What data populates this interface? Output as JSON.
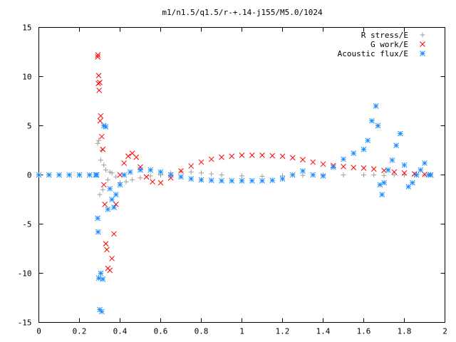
{
  "chart_data": {
    "type": "scatter",
    "title": "m1/n1.5/q1.5/r-+.14-j155/M5.0/1024",
    "xlabel": "",
    "ylabel": "",
    "xlim": [
      0,
      2
    ],
    "ylim": [
      -15,
      15
    ],
    "xticks": [
      0,
      0.2,
      0.4,
      0.6,
      0.8,
      1,
      1.2,
      1.4,
      1.6,
      1.8,
      2
    ],
    "xtick_labels": [
      "0",
      "0.2",
      "0.4",
      "0.6",
      "0.8",
      "1",
      "1.2",
      "1.4",
      "1.6",
      "1.8",
      "2"
    ],
    "yticks": [
      -15,
      -10,
      -5,
      0,
      5,
      10,
      15
    ],
    "ytick_labels": [
      "-15",
      "-10",
      "-5",
      "0",
      "5",
      "10",
      "15"
    ],
    "grid": false,
    "legend_position": "top-right",
    "series": [
      {
        "name": "R stress/E",
        "marker": "plus",
        "color": "#a0a0a0",
        "x": [
          0.29,
          0.295,
          0.3,
          0.305,
          0.31,
          0.315,
          0.32,
          0.33,
          0.34,
          0.35,
          0.36,
          0.38,
          0.4,
          0.43,
          0.46,
          0.5,
          0.55,
          0.6,
          0.65,
          0.7,
          0.75,
          0.8,
          0.85,
          0.9,
          1.0,
          1.1,
          1.2,
          1.3,
          1.4,
          1.5,
          1.6,
          1.65,
          1.7,
          1.75,
          1.8,
          1.85,
          1.9,
          1.93
        ],
        "y": [
          3.2,
          3.5,
          -2.0,
          1.5,
          2.5,
          -1.5,
          1.0,
          0.5,
          -0.5,
          0.3,
          0.2,
          -0.2,
          -0.8,
          -0.7,
          -0.5,
          -0.3,
          -0.1,
          0.0,
          0.2,
          0.35,
          0.3,
          0.2,
          0.1,
          0.0,
          -0.1,
          -0.15,
          -0.1,
          -0.05,
          0.0,
          0.0,
          0.0,
          0.0,
          -0.05,
          0.0,
          0.0,
          0.0,
          0.0,
          0.0
        ]
      },
      {
        "name": "G work/E",
        "marker": "cross",
        "color": "#ff0000",
        "x": [
          0.29,
          0.291,
          0.293,
          0.295,
          0.297,
          0.3,
          0.302,
          0.305,
          0.31,
          0.315,
          0.32,
          0.325,
          0.33,
          0.335,
          0.34,
          0.35,
          0.36,
          0.37,
          0.38,
          0.4,
          0.42,
          0.44,
          0.46,
          0.48,
          0.5,
          0.53,
          0.56,
          0.6,
          0.65,
          0.7,
          0.75,
          0.8,
          0.85,
          0.9,
          0.95,
          1.0,
          1.05,
          1.1,
          1.15,
          1.2,
          1.25,
          1.3,
          1.35,
          1.4,
          1.45,
          1.5,
          1.55,
          1.6,
          1.65,
          1.7,
          1.75,
          1.8,
          1.85,
          1.9,
          1.93
        ],
        "y": [
          12.0,
          12.2,
          9.3,
          10.1,
          8.6,
          9.4,
          5.5,
          6.0,
          3.9,
          2.6,
          -1.0,
          -3.0,
          -7.0,
          -7.6,
          -9.5,
          -9.7,
          -8.5,
          -6.0,
          -3.0,
          0.0,
          1.2,
          1.9,
          2.2,
          1.8,
          0.8,
          -0.2,
          -0.7,
          -0.8,
          -0.3,
          0.4,
          0.9,
          1.3,
          1.6,
          1.8,
          1.9,
          2.0,
          2.0,
          2.0,
          1.95,
          1.9,
          1.75,
          1.55,
          1.3,
          1.1,
          0.95,
          0.85,
          0.75,
          0.7,
          0.6,
          0.45,
          0.3,
          0.2,
          0.1,
          0.05,
          0.0
        ]
      },
      {
        "name": "Acoustic flux/E",
        "marker": "star",
        "color": "#1a8cff",
        "x": [
          0,
          0.05,
          0.1,
          0.15,
          0.2,
          0.25,
          0.28,
          0.285,
          0.29,
          0.292,
          0.295,
          0.3,
          0.305,
          0.31,
          0.315,
          0.32,
          0.33,
          0.34,
          0.35,
          0.36,
          0.37,
          0.38,
          0.4,
          0.42,
          0.45,
          0.5,
          0.55,
          0.6,
          0.65,
          0.7,
          0.75,
          0.8,
          0.85,
          0.9,
          0.95,
          1.0,
          1.05,
          1.1,
          1.15,
          1.2,
          1.25,
          1.3,
          1.35,
          1.4,
          1.45,
          1.5,
          1.55,
          1.6,
          1.62,
          1.64,
          1.66,
          1.67,
          1.68,
          1.69,
          1.7,
          1.72,
          1.74,
          1.76,
          1.78,
          1.8,
          1.82,
          1.84,
          1.86,
          1.88,
          1.9,
          1.92,
          1.93
        ],
        "y": [
          0,
          0,
          0,
          0,
          0,
          0,
          0,
          0,
          -4.4,
          -5.8,
          -10.5,
          -13.7,
          -10.0,
          -13.9,
          -10.6,
          5.0,
          4.9,
          -3.5,
          -1.4,
          -2.5,
          -3.3,
          -2.0,
          -1.0,
          0.0,
          0.3,
          0.5,
          0.5,
          0.3,
          0.0,
          -0.2,
          -0.4,
          -0.5,
          -0.55,
          -0.6,
          -0.6,
          -0.6,
          -0.6,
          -0.6,
          -0.55,
          -0.4,
          0.0,
          0.4,
          0.0,
          -0.1,
          0.8,
          1.6,
          2.2,
          2.6,
          3.5,
          5.5,
          7.0,
          5.0,
          -1.0,
          -2.0,
          -0.8,
          0.5,
          1.5,
          3.0,
          4.2,
          1.0,
          -1.2,
          -0.8,
          0.0,
          0.5,
          1.2,
          0.0,
          0.0
        ]
      }
    ]
  }
}
